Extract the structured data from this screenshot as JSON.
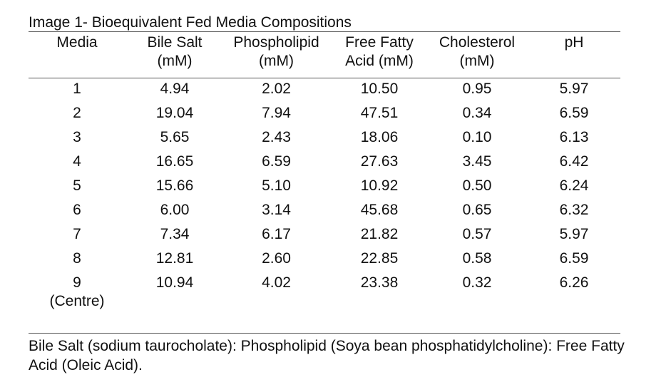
{
  "title": "Image 1- Bioequivalent Fed Media Compositions",
  "headers": [
    {
      "line1": "Media",
      "line2": ""
    },
    {
      "line1": "Bile Salt",
      "line2": "(mM)"
    },
    {
      "line1": "Phospholipid",
      "line2": "(mM)"
    },
    {
      "line1": "Free Fatty",
      "line2": "Acid (mM)"
    },
    {
      "line1": "Cholesterol",
      "line2": "(mM)"
    },
    {
      "line1": "pH",
      "line2": ""
    }
  ],
  "rows": [
    {
      "media": "1",
      "media_note": "",
      "bile_salt": "4.94",
      "phospholipid": "2.02",
      "free_fatty_acid": "10.50",
      "cholesterol": "0.95",
      "ph": "5.97"
    },
    {
      "media": "2",
      "media_note": "",
      "bile_salt": "19.04",
      "phospholipid": "7.94",
      "free_fatty_acid": "47.51",
      "cholesterol": "0.34",
      "ph": "6.59"
    },
    {
      "media": "3",
      "media_note": "",
      "bile_salt": "5.65",
      "phospholipid": "2.43",
      "free_fatty_acid": "18.06",
      "cholesterol": "0.10",
      "ph": "6.13"
    },
    {
      "media": "4",
      "media_note": "",
      "bile_salt": "16.65",
      "phospholipid": "6.59",
      "free_fatty_acid": "27.63",
      "cholesterol": "3.45",
      "ph": "6.42"
    },
    {
      "media": "5",
      "media_note": "",
      "bile_salt": "15.66",
      "phospholipid": "5.10",
      "free_fatty_acid": "10.92",
      "cholesterol": "0.50",
      "ph": "6.24"
    },
    {
      "media": "6",
      "media_note": "",
      "bile_salt": "6.00",
      "phospholipid": "3.14",
      "free_fatty_acid": "45.68",
      "cholesterol": "0.65",
      "ph": "6.32"
    },
    {
      "media": "7",
      "media_note": "",
      "bile_salt": "7.34",
      "phospholipid": "6.17",
      "free_fatty_acid": "21.82",
      "cholesterol": "0.57",
      "ph": "5.97"
    },
    {
      "media": "8",
      "media_note": "",
      "bile_salt": "12.81",
      "phospholipid": "2.60",
      "free_fatty_acid": "22.85",
      "cholesterol": "0.58",
      "ph": "6.59"
    },
    {
      "media": "9",
      "media_note": "(Centre)",
      "bile_salt": "10.94",
      "phospholipid": "4.02",
      "free_fatty_acid": "23.38",
      "cholesterol": "0.32",
      "ph": "6.26"
    }
  ],
  "footnote": "Bile Salt (sodium taurocholate): Phospholipid (Soya bean phosphatidylcholine): Free Fatty Acid (Oleic Acid)."
}
